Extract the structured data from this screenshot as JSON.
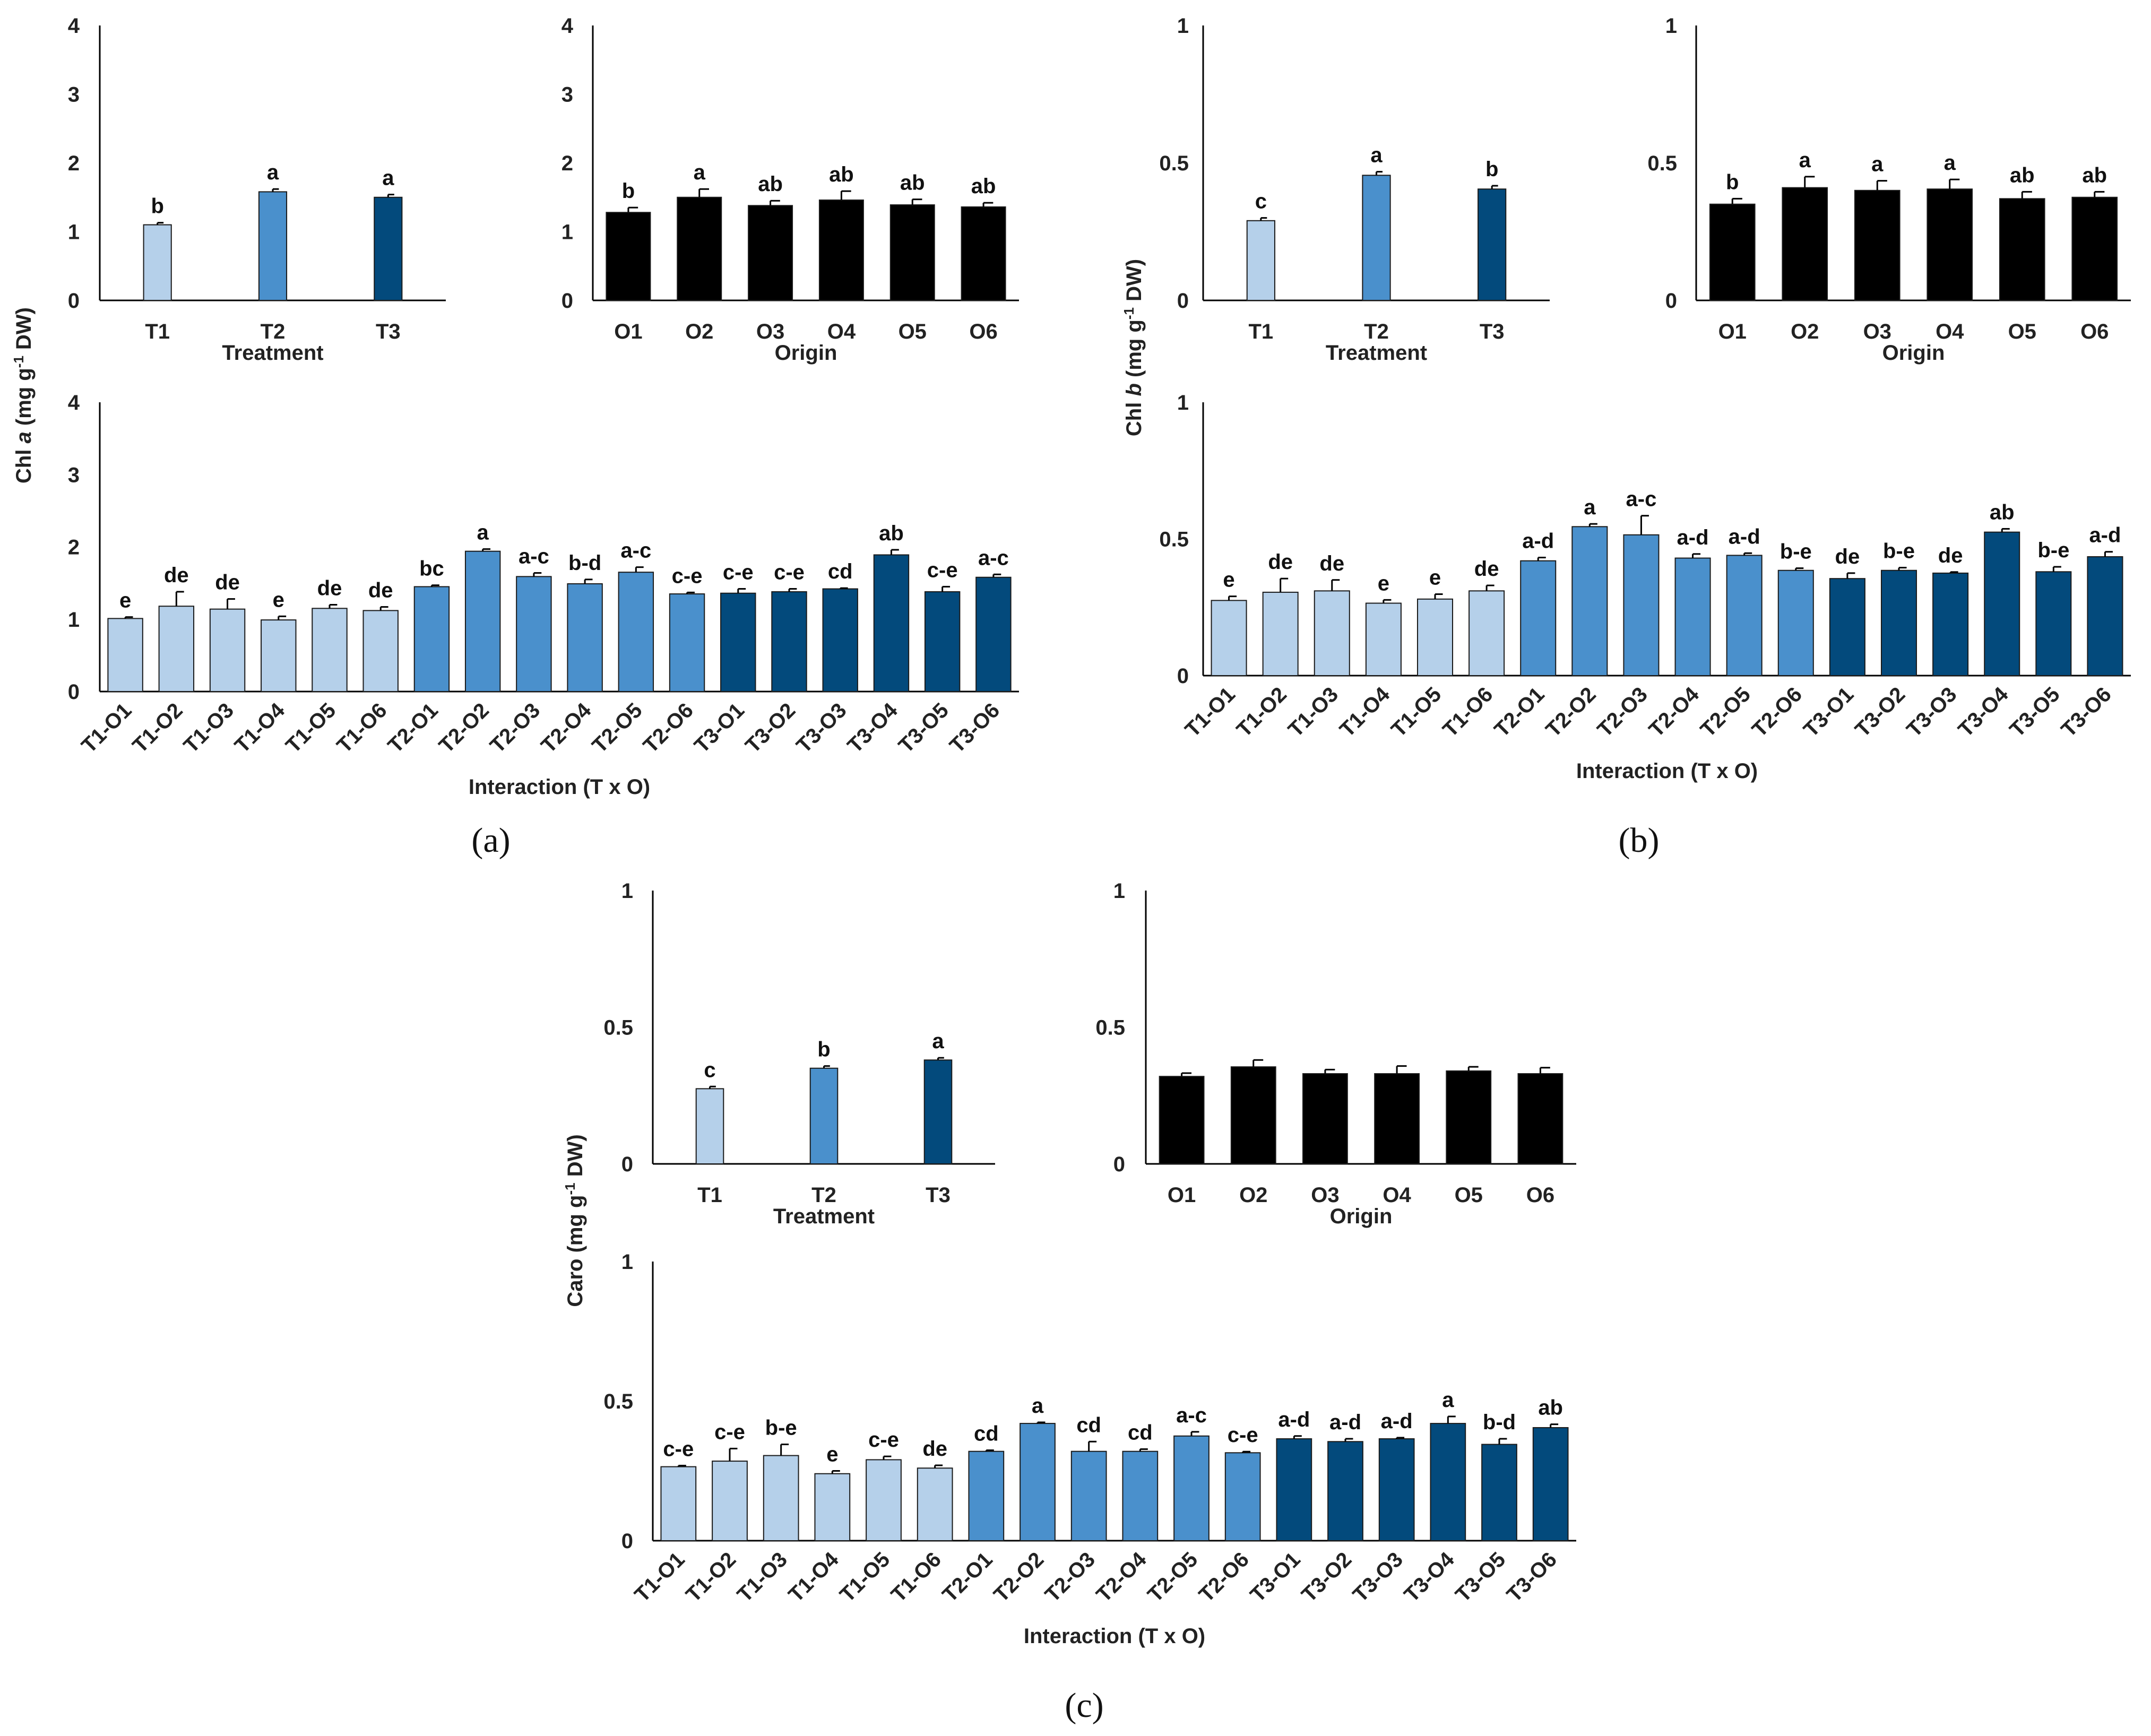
{
  "colors": {
    "T1": "#b5d0ea",
    "T2": "#4a90cc",
    "T3": "#034a7c",
    "origin": "#000000",
    "axis": "#000000"
  },
  "panel_labels": {
    "a": "(a)",
    "b": "(b)",
    "c": "(c)"
  },
  "y_titles": {
    "a": {
      "prefix": "Chl ",
      "italic": "a",
      "unit_pre": " (mg g",
      "sup": "-1",
      "unit_post": " DW)"
    },
    "b": {
      "prefix": "Chl ",
      "italic": "b",
      "unit_pre": " (mg g",
      "sup": "-1",
      "unit_post": " DW)"
    },
    "c": {
      "prefix": "Caro",
      "italic": "",
      "unit_pre": " (mg g",
      "sup": "-1",
      "unit_post": " DW)"
    }
  },
  "chart_data": [
    {
      "id": "a-treatment",
      "panel": "a",
      "type": "bar",
      "xlabel": "Treatment",
      "ylim": [
        0,
        4
      ],
      "yticks": [
        "0",
        "1",
        "2",
        "3",
        "4"
      ],
      "categories": [
        "T1",
        "T2",
        "T3"
      ],
      "values": [
        1.1,
        1.58,
        1.5
      ],
      "errors": [
        0.03,
        0.04,
        0.04
      ],
      "letters": [
        "b",
        "a",
        "a"
      ],
      "groups": [
        "T1",
        "T2",
        "T3"
      ]
    },
    {
      "id": "a-origin",
      "panel": "a",
      "type": "bar",
      "xlabel": "Origin",
      "ylim": [
        0,
        4
      ],
      "yticks": [
        "0",
        "1",
        "2",
        "3",
        "4"
      ],
      "categories": [
        "O1",
        "O2",
        "O3",
        "O4",
        "O5",
        "O6"
      ],
      "values": [
        1.28,
        1.5,
        1.38,
        1.46,
        1.39,
        1.36
      ],
      "errors": [
        0.07,
        0.12,
        0.07,
        0.13,
        0.08,
        0.06
      ],
      "letters": [
        "b",
        "a",
        "ab",
        "ab",
        "ab",
        "ab"
      ],
      "groups": [
        "origin",
        "origin",
        "origin",
        "origin",
        "origin",
        "origin"
      ]
    },
    {
      "id": "a-interaction",
      "panel": "a",
      "type": "bar",
      "xlabel": "Interaction (T x O)",
      "ylim": [
        0,
        4
      ],
      "yticks": [
        "0",
        "1",
        "2",
        "3",
        "4"
      ],
      "categories": [
        "T1-O1",
        "T1-O2",
        "T1-O3",
        "T1-O4",
        "T1-O5",
        "T1-O6",
        "T2-O1",
        "T2-O2",
        "T2-O3",
        "T2-O4",
        "T2-O5",
        "T2-O6",
        "T3-O1",
        "T3-O2",
        "T3-O3",
        "T3-O4",
        "T3-O5",
        "T3-O6"
      ],
      "values": [
        1.01,
        1.18,
        1.14,
        0.99,
        1.15,
        1.12,
        1.45,
        1.94,
        1.59,
        1.49,
        1.65,
        1.35,
        1.36,
        1.38,
        1.42,
        1.89,
        1.38,
        1.58
      ],
      "errors": [
        0.02,
        0.2,
        0.14,
        0.05,
        0.05,
        0.05,
        0.02,
        0.03,
        0.05,
        0.06,
        0.07,
        0.02,
        0.06,
        0.04,
        0.01,
        0.07,
        0.07,
        0.04
      ],
      "letters": [
        "e",
        "de",
        "de",
        "e",
        "de",
        "de",
        "bc",
        "a",
        "a-c",
        "b-d",
        "a-c",
        "c-e",
        "c-e",
        "c-e",
        "cd",
        "ab",
        "c-e",
        "a-c"
      ],
      "groups": [
        "T1",
        "T1",
        "T1",
        "T1",
        "T1",
        "T1",
        "T2",
        "T2",
        "T2",
        "T2",
        "T2",
        "T2",
        "T3",
        "T3",
        "T3",
        "T3",
        "T3",
        "T3"
      ]
    },
    {
      "id": "b-treatment",
      "panel": "b",
      "type": "bar",
      "xlabel": "Treatment",
      "ylim": [
        0,
        1
      ],
      "yticks": [
        "0",
        "0.5",
        "1"
      ],
      "categories": [
        "T1",
        "T2",
        "T3"
      ],
      "values": [
        0.29,
        0.455,
        0.405
      ],
      "errors": [
        0.01,
        0.013,
        0.012
      ],
      "letters": [
        "c",
        "a",
        "b"
      ],
      "groups": [
        "T1",
        "T2",
        "T3"
      ]
    },
    {
      "id": "b-origin",
      "panel": "b",
      "type": "bar",
      "xlabel": "Origin",
      "ylim": [
        0,
        1
      ],
      "yticks": [
        "0",
        "0.5",
        "1"
      ],
      "categories": [
        "O1",
        "O2",
        "O3",
        "O4",
        "O5",
        "O6"
      ],
      "values": [
        0.35,
        0.41,
        0.4,
        0.405,
        0.37,
        0.375
      ],
      "errors": [
        0.02,
        0.04,
        0.035,
        0.035,
        0.025,
        0.02
      ],
      "letters": [
        "b",
        "a",
        "a",
        "a",
        "ab",
        "ab"
      ],
      "groups": [
        "origin",
        "origin",
        "origin",
        "origin",
        "origin",
        "origin"
      ]
    },
    {
      "id": "b-interaction",
      "panel": "b",
      "type": "bar",
      "xlabel": "Interaction (T x O)",
      "ylim": [
        0,
        1
      ],
      "yticks": [
        "0",
        "0.5",
        "1"
      ],
      "categories": [
        "T1-O1",
        "T1-O2",
        "T1-O3",
        "T1-O4",
        "T1-O5",
        "T1-O6",
        "T2-O1",
        "T2-O2",
        "T2-O3",
        "T2-O4",
        "T2-O5",
        "T2-O6",
        "T3-O1",
        "T3-O2",
        "T3-O3",
        "T3-O4",
        "T3-O5",
        "T3-O6"
      ],
      "values": [
        0.275,
        0.305,
        0.31,
        0.265,
        0.28,
        0.31,
        0.42,
        0.545,
        0.515,
        0.43,
        0.44,
        0.385,
        0.355,
        0.385,
        0.375,
        0.525,
        0.38,
        0.435
      ],
      "errors": [
        0.015,
        0.05,
        0.04,
        0.012,
        0.018,
        0.02,
        0.012,
        0.01,
        0.07,
        0.015,
        0.008,
        0.008,
        0.02,
        0.01,
        0.004,
        0.012,
        0.018,
        0.018
      ],
      "letters": [
        "e",
        "de",
        "de",
        "e",
        "e",
        "de",
        "a-d",
        "a",
        "a-c",
        "a-d",
        "a-d",
        "b-e",
        "de",
        "b-e",
        "de",
        "ab",
        "b-e",
        "a-d"
      ],
      "groups": [
        "T1",
        "T1",
        "T1",
        "T1",
        "T1",
        "T1",
        "T2",
        "T2",
        "T2",
        "T2",
        "T2",
        "T2",
        "T3",
        "T3",
        "T3",
        "T3",
        "T3",
        "T3"
      ]
    },
    {
      "id": "c-treatment",
      "panel": "c",
      "type": "bar",
      "xlabel": "Treatment",
      "ylim": [
        0,
        1
      ],
      "yticks": [
        "0",
        "0.5",
        "1"
      ],
      "categories": [
        "T1",
        "T2",
        "T3"
      ],
      "values": [
        0.275,
        0.35,
        0.38
      ],
      "errors": [
        0.008,
        0.008,
        0.008
      ],
      "letters": [
        "c",
        "b",
        "a"
      ],
      "groups": [
        "T1",
        "T2",
        "T3"
      ]
    },
    {
      "id": "c-origin",
      "panel": "c",
      "type": "bar",
      "xlabel": "Origin",
      "ylim": [
        0,
        1
      ],
      "yticks": [
        "0",
        "0.5",
        "1"
      ],
      "categories": [
        "O1",
        "O2",
        "O3",
        "O4",
        "O5",
        "O6"
      ],
      "values": [
        0.32,
        0.355,
        0.33,
        0.33,
        0.34,
        0.33
      ],
      "errors": [
        0.012,
        0.025,
        0.015,
        0.028,
        0.015,
        0.022
      ],
      "letters": [
        "",
        "",
        "",
        "",
        "",
        ""
      ],
      "groups": [
        "origin",
        "origin",
        "origin",
        "origin",
        "origin",
        "origin"
      ]
    },
    {
      "id": "c-interaction",
      "panel": "c",
      "type": "bar",
      "xlabel": "Interaction (T x O)",
      "ylim": [
        0,
        1
      ],
      "yticks": [
        "0",
        "0.5",
        "1"
      ],
      "categories": [
        "T1-O1",
        "T1-O2",
        "T1-O3",
        "T1-O4",
        "T1-O5",
        "T1-O6",
        "T2-O1",
        "T2-O2",
        "T2-O3",
        "T2-O4",
        "T2-O5",
        "T2-O6",
        "T3-O1",
        "T3-O2",
        "T3-O3",
        "T3-O4",
        "T3-O5",
        "T3-O6"
      ],
      "values": [
        0.265,
        0.285,
        0.305,
        0.24,
        0.29,
        0.26,
        0.32,
        0.42,
        0.32,
        0.32,
        0.375,
        0.315,
        0.365,
        0.355,
        0.365,
        0.42,
        0.345,
        0.405
      ],
      "errors": [
        0.004,
        0.045,
        0.04,
        0.01,
        0.012,
        0.01,
        0.004,
        0.004,
        0.035,
        0.008,
        0.015,
        0.004,
        0.01,
        0.01,
        0.004,
        0.025,
        0.02,
        0.012
      ],
      "letters": [
        "c-e",
        "c-e",
        "b-e",
        "e",
        "c-e",
        "de",
        "cd",
        "a",
        "cd",
        "cd",
        "a-c",
        "c-e",
        "a-d",
        "a-d",
        "a-d",
        "a",
        "b-d",
        "ab"
      ],
      "groups": [
        "T1",
        "T1",
        "T1",
        "T1",
        "T1",
        "T1",
        "T2",
        "T2",
        "T2",
        "T2",
        "T2",
        "T2",
        "T3",
        "T3",
        "T3",
        "T3",
        "T3",
        "T3"
      ]
    }
  ]
}
